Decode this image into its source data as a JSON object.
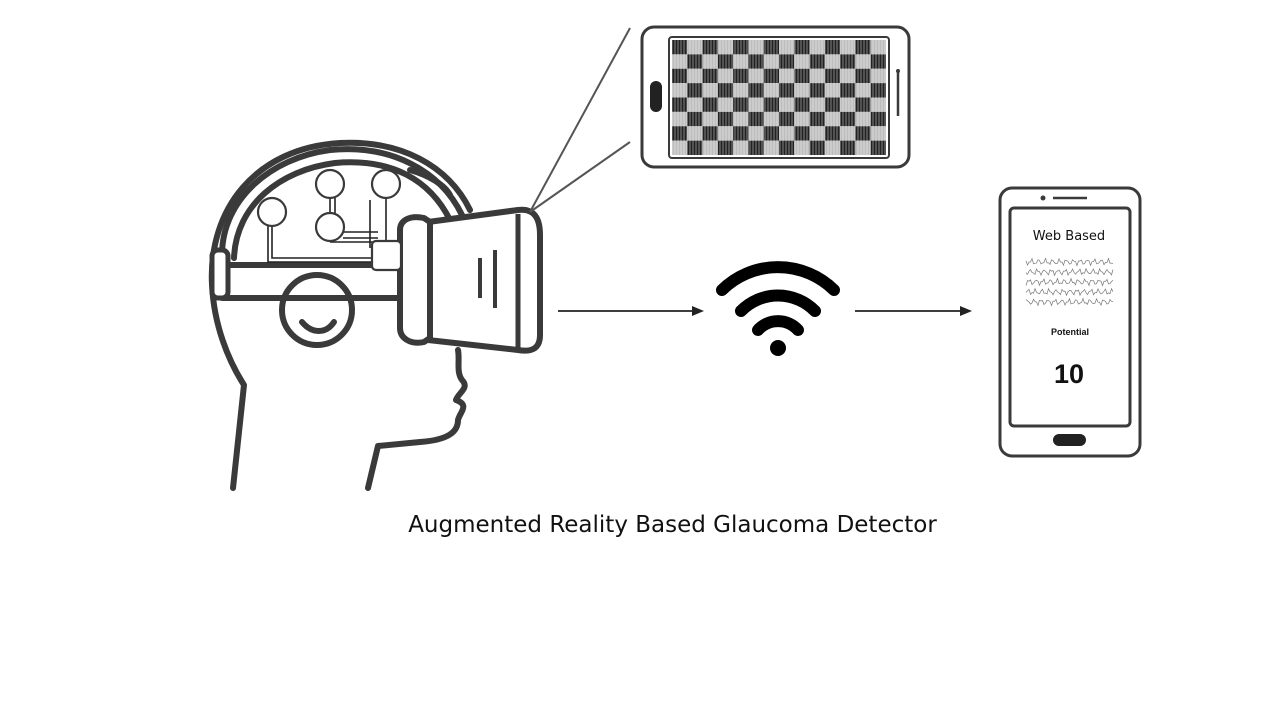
{
  "caption": "Augmented Reality Based Glaucoma Detector",
  "phone": {
    "title": "Web Based",
    "label": "Potential",
    "value": "10"
  },
  "icons": {
    "head": "head-with-vr-headset-icon",
    "electrodes": "eeg-electrode-nodes-icon",
    "stimulus": "checkerboard-stimulus-phone-icon",
    "wireless": "wifi-icon",
    "receiver": "smartphone-icon"
  },
  "colors": {
    "line": "#3a3a3a",
    "background": "#ffffff"
  }
}
